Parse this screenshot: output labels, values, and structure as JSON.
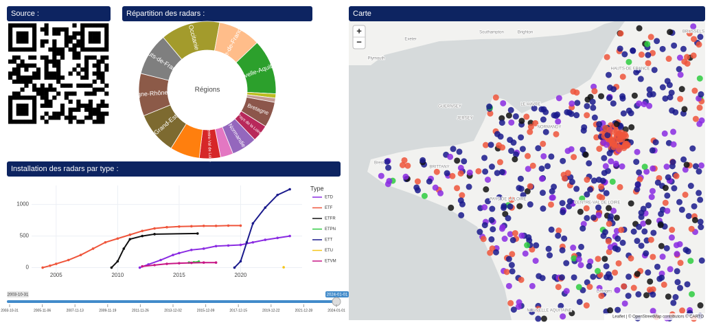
{
  "panels": {
    "source": "Source :",
    "repartition": "Répartition des radars :",
    "installation": "Installation des radars par type :",
    "map": "Carte"
  },
  "chart_data": [
    {
      "type": "pie",
      "donut": true,
      "center_label": "Régions",
      "categories": [
        "Occitanie",
        "Île-de-France",
        "Nouvelle-Aquitaine",
        null,
        null,
        "Bretagne",
        "Pays de la Loire",
        "Normandie",
        null,
        "Centre-Val de Loire",
        null,
        "Grand-Est",
        "Auvergne-Rhône-Alpes",
        "Hauts-de-France"
      ],
      "values": [
        14,
        10,
        13,
        1,
        1,
        6,
        4,
        6,
        3,
        5,
        7,
        10,
        10,
        10
      ],
      "colors": [
        "#a39b2c",
        "#ffbd8a",
        "#2ca02c",
        "#bcbd22",
        "#c49c94",
        "#8c564b",
        "#b8285a",
        "#9467bd",
        "#e377c2",
        "#d62728",
        "#ff7f0e",
        "#7d6a30",
        "#8c5a48",
        "#7f7f7f"
      ]
    },
    {
      "type": "line",
      "legend_title": "Type",
      "grid": true,
      "xlim": [
        2003,
        2025
      ],
      "ylim": [
        -70,
        1300
      ],
      "xticks": [
        2005,
        2010,
        2015,
        2020
      ],
      "yticks": [
        0,
        500,
        1000
      ],
      "series": [
        {
          "name": "ETD",
          "color": "#8a2be2",
          "x": [
            2011.8,
            2012.5,
            2013.5,
            2014.5,
            2015,
            2016,
            2017,
            2018,
            2019,
            2020,
            2021,
            2022,
            2023,
            2024
          ],
          "values": [
            0,
            50,
            120,
            200,
            230,
            280,
            300,
            340,
            350,
            360,
            400,
            440,
            470,
            500
          ]
        },
        {
          "name": "ETF",
          "color": "#ef553b",
          "x": [
            2003.9,
            2004.5,
            2005,
            2006,
            2007,
            2008,
            2009,
            2010,
            2011,
            2012,
            2013,
            2014,
            2015,
            2016,
            2017,
            2018,
            2019,
            2020
          ],
          "values": [
            0,
            30,
            60,
            120,
            200,
            300,
            400,
            460,
            520,
            580,
            620,
            640,
            650,
            655,
            660,
            660,
            665,
            665
          ]
        },
        {
          "name": "ETFR",
          "color": "#111111",
          "x": [
            2009.5,
            2010,
            2010.5,
            2011,
            2012,
            2013,
            2016.5
          ],
          "values": [
            0,
            100,
            300,
            450,
            500,
            530,
            540
          ]
        },
        {
          "name": "ETPN",
          "color": "#2ecc40",
          "x": [
            2015.8,
            2016.2,
            2016.6
          ],
          "values": [
            80,
            85,
            95
          ]
        },
        {
          "name": "ETT",
          "color": "#1a1a8c",
          "x": [
            2019.5,
            2020,
            2020.5,
            2021,
            2022,
            2023,
            2024
          ],
          "values": [
            0,
            100,
            400,
            700,
            950,
            1150,
            1240
          ]
        },
        {
          "name": "ETU",
          "color": "#f5c518",
          "x": [
            2023.5
          ],
          "values": [
            5
          ]
        },
        {
          "name": "ETVM",
          "color": "#c71585",
          "x": [
            2012,
            2013,
            2014,
            2015,
            2016,
            2017,
            2018
          ],
          "values": [
            20,
            40,
            60,
            70,
            75,
            80,
            80
          ]
        }
      ]
    }
  ],
  "slider": {
    "start_label": "2003-10-31",
    "end_label": "2024-01-01",
    "ticks": [
      "2003-10-31",
      "2005-11-06",
      "2007-11-13",
      "2009-11-19",
      "2011-11-26",
      "2013-12-02",
      "2015-12-09",
      "2017-12-15",
      "2019-12-22",
      "2021-12-28",
      "2024-01-01"
    ]
  },
  "map": {
    "zoom_in": "+",
    "zoom_out": "−",
    "places": [
      "Southampton",
      "Brighton",
      "Exeter",
      "Plymouth",
      "GUERNSEY",
      "JERSEY",
      "LE HAVRE",
      "NORMANDY",
      "HAUTS-DE FRANCE",
      "BRUSSELS",
      "PAYS DE LA LOIRE",
      "CENTRE-VAL DE LOIRE",
      "NOUVELLE AQUITAINE",
      "Limoges",
      "Brest",
      "BRITTANY"
    ],
    "attribution": "Leaflet | © OpenStreetMap contributors © CARTO"
  }
}
